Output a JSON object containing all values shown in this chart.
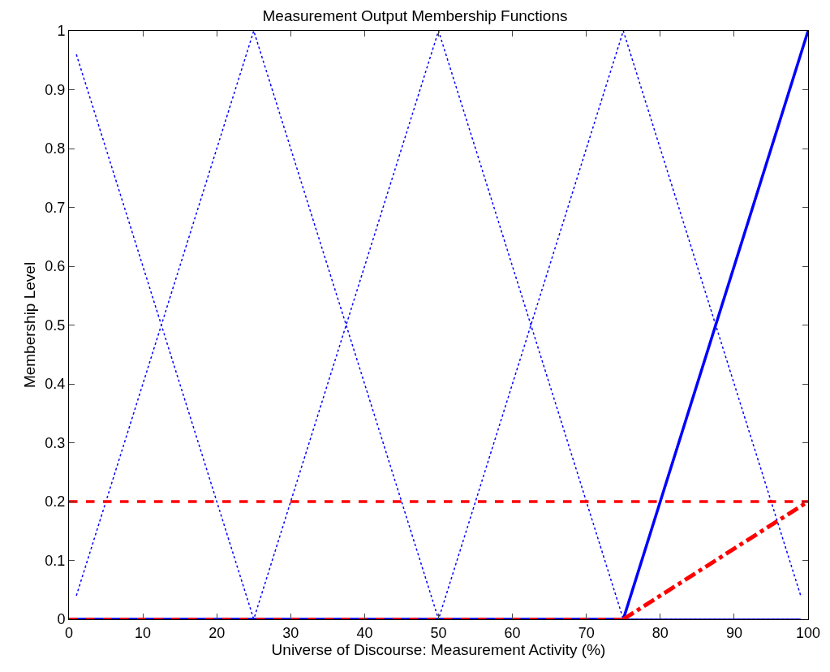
{
  "chart_data": {
    "type": "line",
    "title": "Measurement Output Membership Functions",
    "xlabel": "Universe of Discourse: Measurement Activity (%)",
    "ylabel": "Membership Level",
    "xlim": [
      0,
      100
    ],
    "ylim": [
      0,
      1
    ],
    "xticks": [
      0,
      10,
      20,
      30,
      40,
      50,
      60,
      70,
      80,
      90,
      100
    ],
    "yticks": [
      0,
      0.1,
      0.2,
      0.3,
      0.4,
      0.5,
      0.6,
      0.7,
      0.8,
      0.9,
      1
    ],
    "marker": "none",
    "series": [
      {
        "color": "#0000ff",
        "line_style": "dotted",
        "x": [
          1,
          25,
          99
        ],
        "values": [
          0.96,
          0,
          0
        ]
      },
      {
        "color": "#0000ff",
        "line_style": "dotted",
        "x": [
          1,
          25,
          50,
          99
        ],
        "values": [
          0.04,
          1,
          0,
          0
        ]
      },
      {
        "color": "#0000ff",
        "line_style": "dotted",
        "x": [
          1,
          25,
          50,
          75,
          99
        ],
        "values": [
          0,
          0,
          1,
          0,
          0
        ]
      },
      {
        "color": "#0000ff",
        "line_style": "dotted",
        "x": [
          1,
          50,
          75,
          99
        ],
        "values": [
          0,
          0,
          1,
          0.04
        ]
      },
      {
        "color": "#0000ff",
        "line_style": "solid",
        "x": [
          0,
          75,
          100
        ],
        "values": [
          0,
          0,
          1
        ]
      },
      {
        "color": "#ff0000",
        "line_style": "dashed",
        "x": [
          0,
          100
        ],
        "values": [
          0.2,
          0.2
        ]
      },
      {
        "color": "#ff0000",
        "line_style": "dashed",
        "x": [
          0,
          75
        ],
        "values": [
          0,
          0
        ]
      },
      {
        "color": "#ff0000",
        "line_style": "dashdot",
        "x": [
          75,
          100
        ],
        "values": [
          0,
          0.2
        ]
      }
    ]
  }
}
